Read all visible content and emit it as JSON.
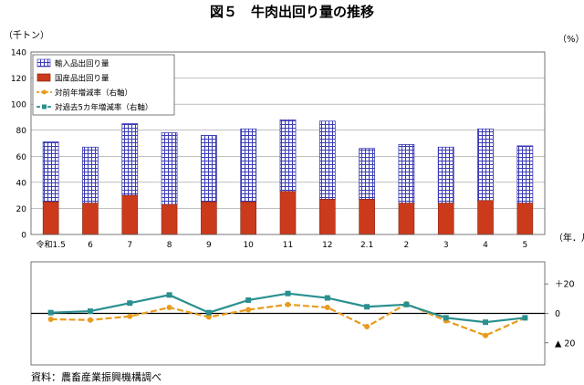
{
  "title": "図５　牛肉出回り量の推移",
  "source": "資料：農畜産業振興機構調べ",
  "left_unit": "（千トン）",
  "right_unit": "（%）",
  "x_unit": "（年．月）",
  "colors": {
    "import_fill": "#ffffff",
    "import_grid": "#3b3bb5",
    "domestic": "#cc3a1c",
    "yoy": "#e89b1e",
    "vs5y": "#2a8f8f",
    "gridline": "#9a9a9a"
  },
  "chart_data": [
    {
      "type": "bar",
      "stacked": true,
      "categories": [
        "令和1.5",
        "6",
        "7",
        "8",
        "9",
        "10",
        "11",
        "12",
        "2.1",
        "2",
        "3",
        "4",
        "5"
      ],
      "ylim": [
        0,
        140
      ],
      "yticks": [
        0,
        20,
        40,
        60,
        80,
        100,
        120,
        140
      ],
      "ylabel": "（千トン）",
      "xlabel": "（年．月）",
      "grid": true,
      "legend_position": "top-left",
      "series": [
        {
          "name": "国産品出回り量",
          "values": [
            25,
            24,
            30,
            23,
            25,
            25,
            33,
            27,
            27,
            24,
            24,
            26,
            24
          ]
        },
        {
          "name": "輸入品出回り量",
          "values": [
            46,
            43,
            55,
            55,
            51,
            56,
            55,
            60,
            39,
            45,
            43,
            55,
            44
          ]
        }
      ],
      "totals": [
        71,
        67,
        85,
        78,
        76,
        81,
        88,
        87,
        66,
        69,
        67,
        81,
        68
      ]
    },
    {
      "type": "line",
      "categories": [
        "令和1.5",
        "6",
        "7",
        "8",
        "9",
        "10",
        "11",
        "12",
        "2.1",
        "2",
        "3",
        "4",
        "5"
      ],
      "ylim": [
        -35,
        35
      ],
      "yticks": [
        20,
        0,
        -20
      ],
      "ytick_labels": [
        "＋20",
        "0",
        "▲ 20"
      ],
      "ylabel": "（%）",
      "grid": false,
      "series": [
        {
          "name": "対前年増減率（右軸）",
          "values": [
            -4,
            -4.5,
            -2,
            4,
            -2.5,
            2.5,
            6,
            4,
            -9,
            6.5,
            -5,
            -15,
            -3
          ]
        },
        {
          "name": "対過去5カ年増減率（右軸）",
          "values": [
            0.5,
            1.5,
            7,
            12.5,
            0.5,
            9,
            13.5,
            10.5,
            4.5,
            6,
            -3,
            -6,
            -3
          ]
        }
      ]
    }
  ]
}
